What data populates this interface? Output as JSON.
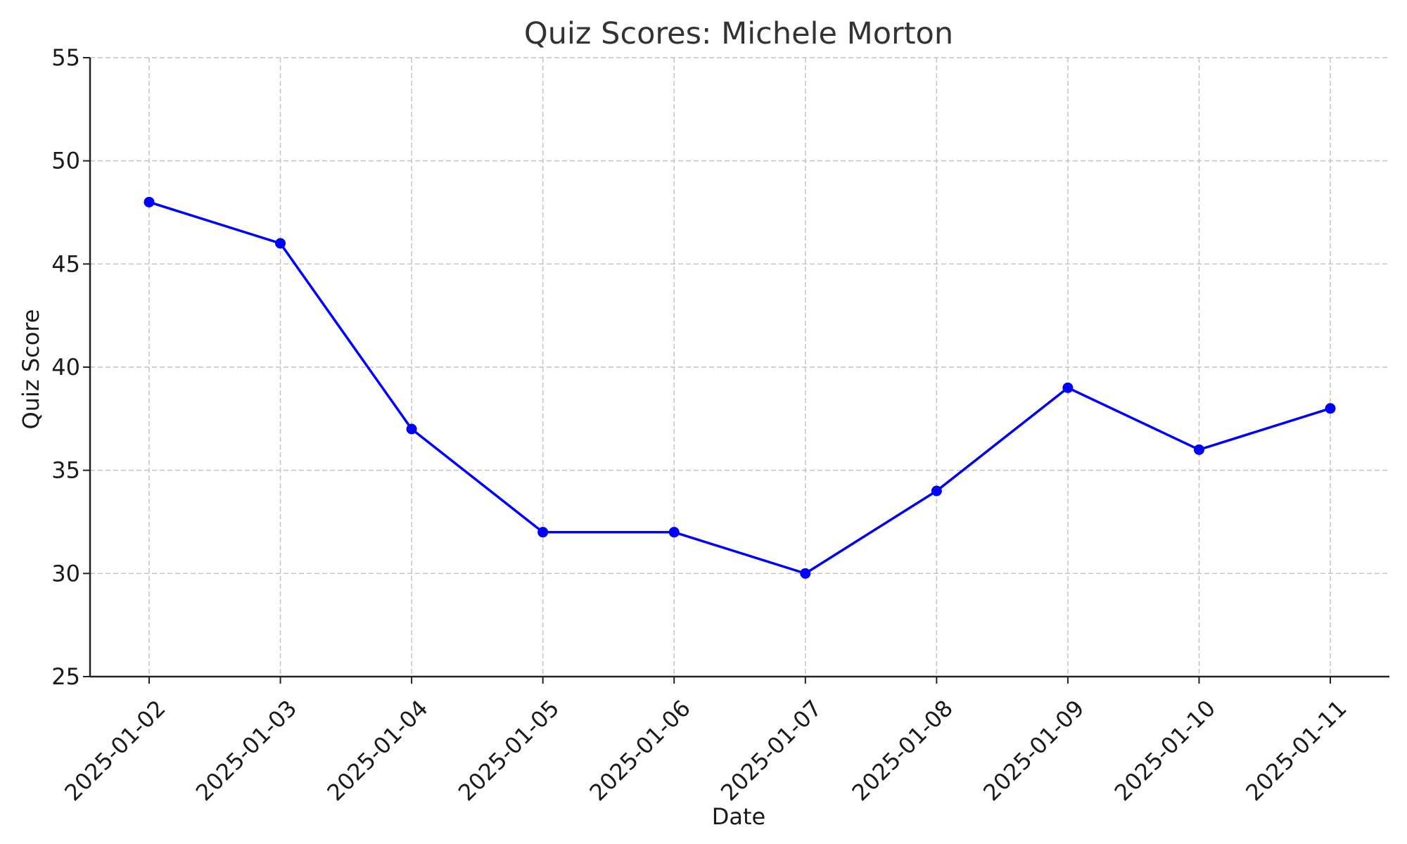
{
  "chart_data": {
    "type": "line",
    "title": "Quiz Scores: Michele Morton",
    "xlabel": "Date",
    "ylabel": "Quiz Score",
    "categories": [
      "2025-01-02",
      "2025-01-03",
      "2025-01-04",
      "2025-01-05",
      "2025-01-06",
      "2025-01-07",
      "2025-01-08",
      "2025-01-09",
      "2025-01-10",
      "2025-01-11"
    ],
    "series": [
      {
        "values": [
          48,
          46,
          37,
          32,
          32,
          30,
          34,
          39,
          36,
          38
        ],
        "color": "#0000ff",
        "marker": "circle"
      }
    ],
    "ylim": [
      25,
      55
    ],
    "yticks": [
      "25",
      "30",
      "35",
      "40",
      "45",
      "50",
      "55"
    ],
    "grid": true,
    "legend": "none"
  }
}
